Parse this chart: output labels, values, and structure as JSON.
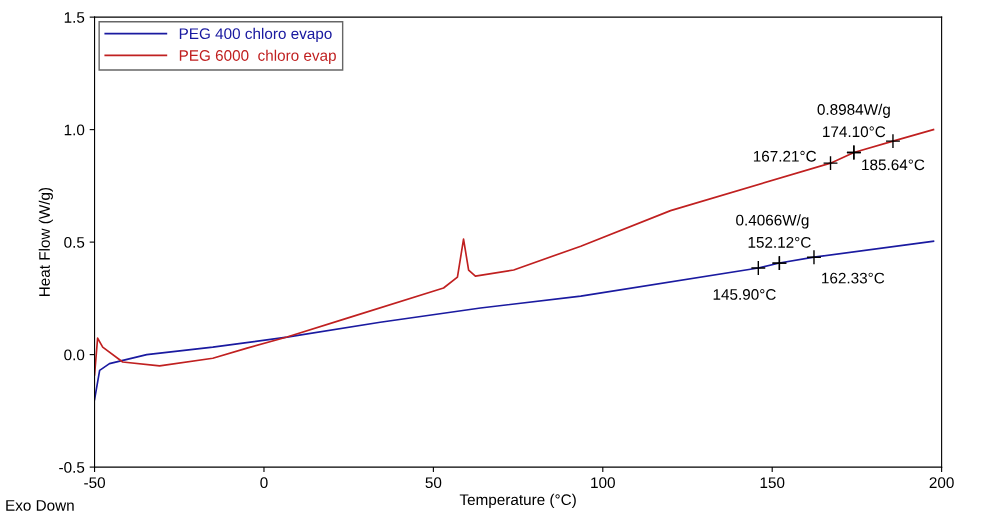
{
  "chart_data": {
    "type": "line",
    "xlabel": "Temperature (°C)",
    "ylabel": "Heat Flow (W/g)",
    "xlim": [
      -50,
      200
    ],
    "xticks": [
      -50,
      0,
      50,
      100,
      150,
      200
    ],
    "ylim": [
      -0.5,
      1.5
    ],
    "yticks": [
      -0.5,
      {
        "value": 0,
        "label": "0.0"
      },
      0.5,
      {
        "value": 1,
        "label": "1.0"
      },
      1.5
    ],
    "legend": "top left",
    "grid": false,
    "marker": "none",
    "line_style": "solid",
    "series": [
      {
        "name": "PEG 400 chloro evapo",
        "color": "#1a1aa0",
        "x": [
          -50,
          -48.5,
          -45.6,
          -34.6,
          -15.1,
          6.8,
          34.3,
          63.9,
          93.5,
          145.9,
          152.12,
          162.33,
          197.6
        ],
        "values": [
          -0.2,
          -0.07,
          -0.04,
          0.0,
          0.033,
          0.078,
          0.144,
          0.207,
          0.26,
          0.385,
          0.407,
          0.433,
          0.504
        ]
      },
      {
        "name": "PEG 6000  chloro evap",
        "color": "#c02020",
        "x": [
          -50,
          -49.1,
          -47.6,
          -41.7,
          -30.8,
          -15.1,
          -5.0,
          6.8,
          24.6,
          53.0,
          57.1,
          58.9,
          60.4,
          62.4,
          73.7,
          93.5,
          120,
          167.21,
          174.1,
          185.64,
          197.6
        ],
        "values": [
          -0.09,
          0.073,
          0.033,
          -0.033,
          -0.05,
          -0.016,
          0.029,
          0.078,
          0.162,
          0.296,
          0.344,
          0.513,
          0.376,
          0.349,
          0.376,
          0.482,
          0.64,
          0.851,
          0.8984,
          0.949,
          1.0
        ]
      }
    ],
    "annotations": [
      {
        "text": "0.8984W/g",
        "x": 174.1,
        "y": 0.8984
      },
      {
        "text": "174.10°C",
        "x": 174.1,
        "y": 0.8984
      },
      {
        "text": "167.21°C",
        "x": 167.21,
        "y": 0.851
      },
      {
        "text": "185.64°C",
        "x": 185.64,
        "y": 0.949
      },
      {
        "text": "0.4066W/g",
        "x": 152.12,
        "y": 0.4066
      },
      {
        "text": "152.12°C",
        "x": 152.12,
        "y": 0.4066
      },
      {
        "text": "145.90°C",
        "x": 145.9,
        "y": 0.385
      },
      {
        "text": "162.33°C",
        "x": 162.33,
        "y": 0.433
      },
      "Exo Down"
    ]
  }
}
